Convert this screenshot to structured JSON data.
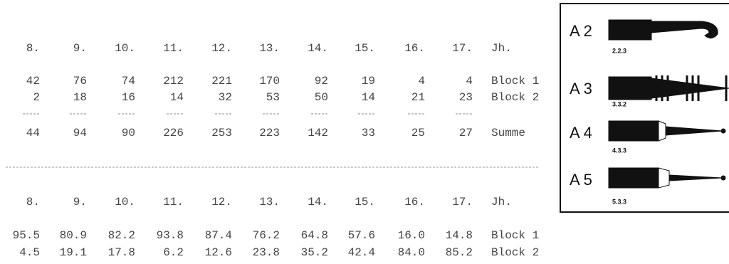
{
  "table1": {
    "header": [
      "8.",
      "9.",
      "10.",
      "11.",
      "12.",
      "13.",
      "14.",
      "15.",
      "16.",
      "17.",
      "Jh."
    ],
    "rows": [
      [
        "42",
        "76",
        "74",
        "212",
        "221",
        "170",
        "92",
        "19",
        "4",
        "4",
        "Block 1"
      ],
      [
        "2",
        "18",
        "16",
        "14",
        "32",
        "53",
        "50",
        "14",
        "21",
        "23",
        "Block 2"
      ],
      [
        "44",
        "94",
        "90",
        "226",
        "253",
        "223",
        "142",
        "33",
        "25",
        "27",
        "Summe"
      ]
    ]
  },
  "table2": {
    "header": [
      "8.",
      "9.",
      "10.",
      "11.",
      "12.",
      "13.",
      "14.",
      "15.",
      "16.",
      "17.",
      "Jh."
    ],
    "rows": [
      [
        "95.5",
        "80.9",
        "82.2",
        "93.8",
        "87.4",
        "76.2",
        "64.8",
        "57.6",
        "16.0",
        "14.8",
        "Block 1"
      ],
      [
        "4.5",
        "19.1",
        "17.8",
        "6.2",
        "12.6",
        "23.8",
        "35.2",
        "42.4",
        "84.0",
        "85.2",
        "Block 2"
      ]
    ]
  },
  "figure": {
    "items": [
      {
        "label": "A 2",
        "code": "2.2.3"
      },
      {
        "label": "A 3",
        "code": "3.3.2"
      },
      {
        "label": "A 4",
        "code": "4.3.3"
      },
      {
        "label": "A 5",
        "code": "5.3.3"
      }
    ]
  }
}
